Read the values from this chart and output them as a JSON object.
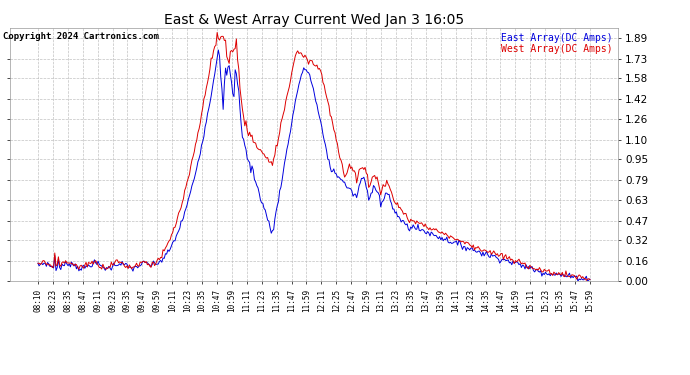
{
  "title": "East & West Array Current Wed Jan 3 16:05",
  "copyright": "Copyright 2024 Cartronics.com",
  "legend_east": "East Array(DC Amps)",
  "legend_west": "West Array(DC Amps)",
  "east_color": "#0000dd",
  "west_color": "#dd0000",
  "background_color": "#ffffff",
  "plot_bg_color": "#ffffff",
  "grid_color": "#bbbbbb",
  "ylim": [
    0.0,
    1.97
  ],
  "yticks": [
    0.0,
    0.16,
    0.32,
    0.47,
    0.63,
    0.79,
    0.95,
    1.1,
    1.26,
    1.42,
    1.58,
    1.73,
    1.89
  ],
  "xtick_labels": [
    "08:10",
    "08:23",
    "08:35",
    "08:47",
    "09:11",
    "09:23",
    "09:35",
    "09:47",
    "09:59",
    "10:11",
    "10:23",
    "10:35",
    "10:47",
    "10:59",
    "11:11",
    "11:23",
    "11:35",
    "11:47",
    "11:59",
    "12:11",
    "12:25",
    "12:47",
    "12:59",
    "13:11",
    "13:23",
    "13:35",
    "13:47",
    "13:59",
    "14:11",
    "14:23",
    "14:35",
    "14:47",
    "14:59",
    "15:11",
    "15:23",
    "15:35",
    "15:47",
    "15:59"
  ]
}
